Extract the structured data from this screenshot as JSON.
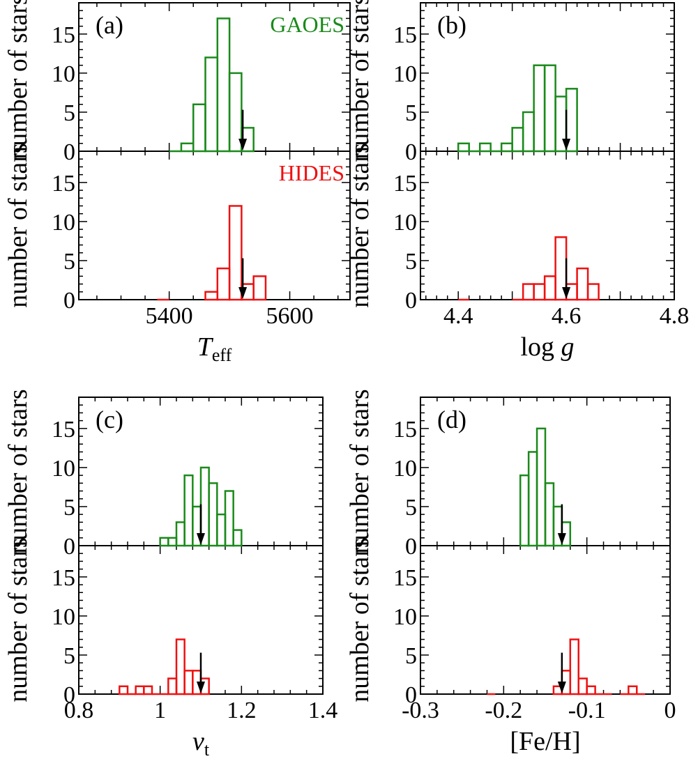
{
  "colors": {
    "gaoes": "#1a8a1a",
    "hides": "#ee1111",
    "arrow": "#000000",
    "axes": "#000000"
  },
  "chart_data": [
    {
      "id": "a",
      "panel_label": "(a)",
      "type": "bar",
      "xlabel": "T",
      "xlabel_sub": "eff",
      "xlabel_italic": true,
      "ylabel_top": "number of stars",
      "ylabel_bottom": "number of stars",
      "xlim": [
        5250,
        5700
      ],
      "ylim": [
        0,
        19
      ],
      "xticks": [
        5400,
        5600
      ],
      "xtick_labels": [
        "5400",
        "5600"
      ],
      "yticks": [
        0,
        5,
        10,
        15
      ],
      "ytick_labels": [
        "0",
        "5",
        "10",
        "15"
      ],
      "bin_width": 20,
      "arrow_x": 5522,
      "series": [
        {
          "name": "GAOES",
          "color_key": "gaoes",
          "name_shown": true,
          "bin_starts": [
            5400,
            5420,
            5440,
            5460,
            5480,
            5500,
            5520
          ],
          "counts": [
            0,
            1,
            6,
            12,
            17,
            10,
            3
          ]
        },
        {
          "name": "HIDES",
          "color_key": "hides",
          "name_shown": true,
          "bin_starts": [
            5380,
            5460,
            5480,
            5500,
            5520,
            5540
          ],
          "counts": [
            0,
            1,
            4,
            12,
            2,
            3
          ]
        }
      ]
    },
    {
      "id": "b",
      "panel_label": "(b)",
      "type": "bar",
      "xlabel": "log g",
      "xlabel_italic": false,
      "ylabel_top": "number of stars",
      "ylabel_bottom": "number of stars",
      "xlim": [
        4.33,
        4.8
      ],
      "ylim": [
        0,
        19
      ],
      "xticks": [
        4.4,
        4.5,
        4.6,
        4.7,
        4.8
      ],
      "xtick_labels": [
        "4.4",
        "",
        "4.6",
        "",
        "4.8"
      ],
      "yticks": [
        0,
        5,
        10,
        15
      ],
      "ytick_labels": [
        "0",
        "5",
        "10",
        "15"
      ],
      "bin_width": 0.02,
      "arrow_x": 4.6,
      "series": [
        {
          "name": "GAOES",
          "color_key": "gaoes",
          "name_shown": false,
          "bin_starts": [
            4.4,
            4.42,
            4.44,
            4.46,
            4.48,
            4.5,
            4.52,
            4.54,
            4.56,
            4.58,
            4.6
          ],
          "counts": [
            1,
            0,
            1,
            0,
            1,
            3,
            5,
            11,
            11,
            7,
            8
          ]
        },
        {
          "name": "HIDES",
          "color_key": "hides",
          "name_shown": false,
          "bin_starts": [
            4.4,
            4.5,
            4.52,
            4.54,
            4.56,
            4.58,
            4.6,
            4.62,
            4.64
          ],
          "counts": [
            0,
            0,
            2,
            2,
            3,
            8,
            2,
            4,
            2
          ]
        }
      ]
    },
    {
      "id": "c",
      "panel_label": "(c)",
      "type": "bar",
      "xlabel": "v",
      "xlabel_sub": "t",
      "xlabel_italic": true,
      "ylabel_top": "number of stars",
      "ylabel_bottom": "number of stars",
      "xlim": [
        0.8,
        1.4
      ],
      "ylim": [
        0,
        19
      ],
      "xticks": [
        0.8,
        1.0,
        1.2,
        1.4
      ],
      "xtick_labels": [
        "0.8",
        "1",
        "1.2",
        "1.4"
      ],
      "yticks": [
        0,
        5,
        10,
        15
      ],
      "ytick_labels": [
        "0",
        "5",
        "10",
        "15"
      ],
      "bin_width": 0.02,
      "arrow_x": 1.1,
      "series": [
        {
          "name": "GAOES",
          "color_key": "gaoes",
          "name_shown": false,
          "bin_starts": [
            1.0,
            1.02,
            1.04,
            1.06,
            1.08,
            1.1,
            1.12,
            1.14,
            1.16,
            1.18
          ],
          "counts": [
            1,
            1,
            3,
            9,
            5,
            10,
            8,
            4,
            7,
            2
          ]
        },
        {
          "name": "HIDES",
          "color_key": "hides",
          "name_shown": false,
          "bin_starts": [
            0.9,
            0.92,
            0.94,
            0.96,
            0.98,
            1.0,
            1.02,
            1.04,
            1.06,
            1.08,
            1.1
          ],
          "counts": [
            1,
            0,
            1,
            1,
            0,
            0,
            2,
            7,
            3,
            3,
            2
          ]
        }
      ]
    },
    {
      "id": "d",
      "panel_label": "(d)",
      "type": "bar",
      "xlabel": "[Fe/H]",
      "xlabel_italic": false,
      "ylabel_top": "number of stars",
      "ylabel_bottom": "number of stars",
      "xlim": [
        -0.3,
        0.0
      ],
      "ylim": [
        0,
        19
      ],
      "xticks": [
        -0.3,
        -0.2,
        -0.1,
        0.0
      ],
      "xtick_labels": [
        "-0.3",
        "-0.2",
        "-0.1",
        "0"
      ],
      "yticks": [
        0,
        5,
        10,
        15
      ],
      "ytick_labels": [
        "0",
        "5",
        "10",
        "15"
      ],
      "bin_width": 0.01,
      "arrow_x": -0.13,
      "series": [
        {
          "name": "GAOES",
          "color_key": "gaoes",
          "name_shown": false,
          "bin_starts": [
            -0.18,
            -0.17,
            -0.16,
            -0.15,
            -0.14,
            -0.13
          ],
          "counts": [
            9,
            12,
            15,
            8,
            5,
            3
          ]
        },
        {
          "name": "HIDES",
          "color_key": "hides",
          "name_shown": false,
          "bin_starts": [
            -0.22,
            -0.14,
            -0.13,
            -0.12,
            -0.11,
            -0.1,
            -0.09,
            -0.08,
            -0.06,
            -0.05,
            -0.04
          ],
          "counts": [
            0,
            1,
            3,
            7,
            2,
            1,
            0,
            0,
            0,
            1,
            0
          ]
        }
      ]
    }
  ]
}
